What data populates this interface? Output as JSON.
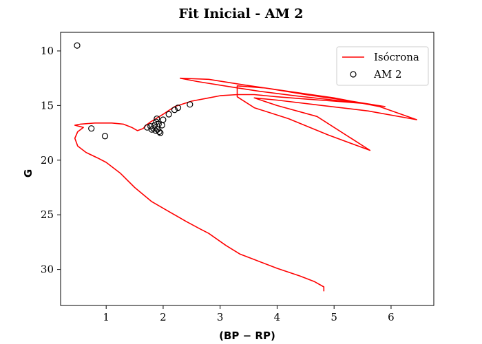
{
  "chart_data": {
    "type": "scatter",
    "title": "Fit Inicial - AM 2",
    "xlabel": "(BP − RP)",
    "ylabel": "G",
    "xlim": [
      0.2,
      6.75
    ],
    "ylim": [
      33.3,
      8.3
    ],
    "y_inverted": true,
    "xticks": [
      1,
      2,
      3,
      4,
      5,
      6
    ],
    "yticks": [
      10,
      15,
      20,
      25,
      30
    ],
    "legend_position": "top-right",
    "series": [
      {
        "name": "Isócrona",
        "kind": "line",
        "color": "#ff0000",
        "points": [
          [
            4.82,
            32.0
          ],
          [
            4.82,
            31.6
          ],
          [
            4.65,
            31.1
          ],
          [
            4.4,
            30.6
          ],
          [
            4.0,
            29.9
          ],
          [
            3.6,
            29.1
          ],
          [
            3.35,
            28.6
          ],
          [
            3.1,
            27.8
          ],
          [
            2.8,
            26.7
          ],
          [
            2.65,
            26.3
          ],
          [
            2.4,
            25.6
          ],
          [
            2.1,
            24.7
          ],
          [
            1.8,
            23.8
          ],
          [
            1.5,
            22.5
          ],
          [
            1.25,
            21.2
          ],
          [
            1.0,
            20.2
          ],
          [
            0.85,
            19.8
          ],
          [
            0.65,
            19.3
          ],
          [
            0.5,
            18.7
          ],
          [
            0.45,
            18.0
          ],
          [
            0.5,
            17.4
          ],
          [
            0.6,
            17.0
          ],
          [
            0.45,
            16.8
          ],
          [
            0.55,
            16.7
          ],
          [
            0.8,
            16.6
          ],
          [
            1.1,
            16.6
          ],
          [
            1.3,
            16.7
          ],
          [
            1.45,
            17.0
          ],
          [
            1.55,
            17.3
          ],
          [
            1.65,
            17.1
          ],
          [
            1.7,
            16.8
          ],
          [
            1.78,
            16.5
          ],
          [
            2.0,
            15.8
          ],
          [
            2.2,
            15.1
          ],
          [
            2.5,
            14.6
          ],
          [
            2.8,
            14.3
          ],
          [
            3.0,
            14.1
          ],
          [
            3.3,
            14.0
          ],
          [
            3.6,
            14.0
          ],
          [
            4.0,
            14.2
          ],
          [
            4.5,
            14.4
          ],
          [
            5.0,
            14.6
          ],
          [
            5.5,
            14.8
          ],
          [
            5.0,
            14.5
          ],
          [
            4.3,
            14.1
          ],
          [
            3.7,
            13.7
          ],
          [
            3.2,
            13.3
          ],
          [
            2.6,
            12.8
          ],
          [
            2.3,
            12.5
          ],
          [
            2.8,
            12.6
          ],
          [
            3.4,
            13.1
          ],
          [
            4.2,
            13.7
          ],
          [
            5.0,
            14.3
          ],
          [
            5.8,
            15.1
          ],
          [
            6.45,
            16.3
          ],
          [
            5.6,
            15.5
          ],
          [
            4.8,
            15.0
          ],
          [
            4.0,
            14.5
          ],
          [
            3.6,
            14.3
          ],
          [
            4.0,
            15.0
          ],
          [
            4.7,
            16.0
          ],
          [
            5.63,
            19.1
          ],
          [
            4.9,
            17.7
          ],
          [
            4.2,
            16.2
          ],
          [
            3.6,
            15.2
          ],
          [
            3.3,
            14.2
          ],
          [
            3.3,
            13.2
          ],
          [
            3.8,
            13.4
          ],
          [
            4.5,
            14.0
          ],
          [
            5.3,
            14.6
          ],
          [
            5.9,
            15.1
          ]
        ]
      },
      {
        "name": "AM 2",
        "kind": "scatter",
        "color": "#000000",
        "points": [
          [
            0.49,
            9.5
          ],
          [
            0.74,
            17.1
          ],
          [
            0.98,
            17.8
          ],
          [
            1.72,
            17.0
          ],
          [
            1.78,
            16.9
          ],
          [
            1.8,
            17.2
          ],
          [
            1.83,
            17.1
          ],
          [
            1.85,
            16.8
          ],
          [
            1.87,
            17.3
          ],
          [
            1.88,
            16.5
          ],
          [
            1.89,
            16.2
          ],
          [
            1.9,
            17.2
          ],
          [
            1.92,
            16.7
          ],
          [
            1.93,
            17.4
          ],
          [
            1.95,
            17.5
          ],
          [
            1.98,
            16.8
          ],
          [
            2.0,
            16.3
          ],
          [
            2.1,
            15.8
          ],
          [
            2.2,
            15.4
          ],
          [
            2.26,
            15.2
          ],
          [
            2.47,
            14.9
          ]
        ]
      }
    ]
  }
}
